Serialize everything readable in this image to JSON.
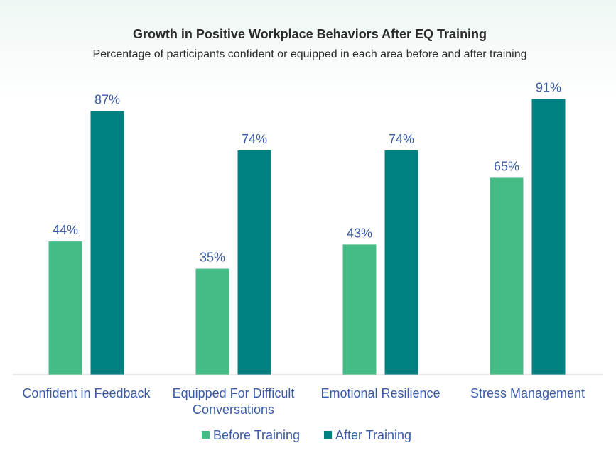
{
  "chart_data": {
    "type": "bar",
    "title": "Growth in Positive Workplace Behaviors After EQ Training",
    "subtitle": "Percentage of participants confident or equipped in each area before and after training",
    "categories": [
      [
        "Confident in Feedback"
      ],
      [
        "Equipped For Difficult",
        "Conversations"
      ],
      [
        "Emotional Resilience"
      ],
      [
        "Stress Management"
      ]
    ],
    "series": [
      {
        "name": "Before Training",
        "color": "#45bb85",
        "values": [
          44,
          35,
          43,
          65
        ],
        "labels": [
          "44%",
          "35%",
          "43%",
          "65%"
        ]
      },
      {
        "name": "After Training",
        "color": "#008080",
        "values": [
          87,
          74,
          74,
          91
        ],
        "labels": [
          "87%",
          "74%",
          "74%",
          "91%"
        ]
      }
    ],
    "ylim": [
      0,
      100
    ],
    "grid": false,
    "legend": "bottom",
    "xlabel": "",
    "ylabel": ""
  }
}
